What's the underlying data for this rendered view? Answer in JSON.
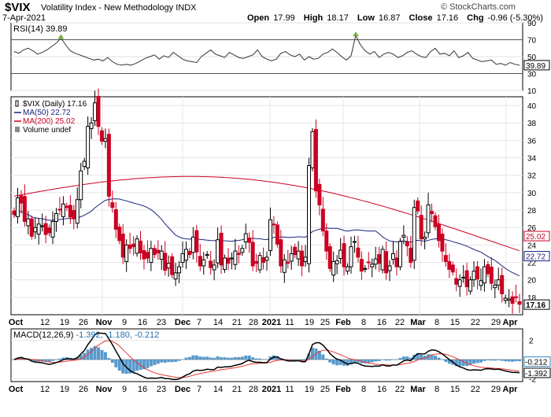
{
  "header": {
    "symbol": "$VIX",
    "name": "Volatility Index - New Methodology",
    "exchange": "INDX",
    "date": "7-Apr-2021",
    "logo": "© StockCharts.com",
    "open_label": "Open",
    "open": "17.99",
    "high_label": "High",
    "high": "18.17",
    "low_label": "Low",
    "low": "16.87",
    "close_label": "Close",
    "close": "17.16",
    "chg_label": "Chg",
    "chg": "-0.96 (-5.30%)"
  },
  "colors": {
    "up": "#000000",
    "down": "#cc0022",
    "ma50": "#1a237e",
    "ma200": "#cc0022",
    "macd_hist": "#3b88c4",
    "rsi_line": "#333333",
    "rsi_marker": "#7cb342"
  },
  "chart_data": [
    {
      "panel": "rsi",
      "type": "line",
      "title": "RSI(14) 39.89",
      "current_label": "39.89",
      "ylim": [
        10,
        90
      ],
      "ticks": [
        "90",
        "70",
        "50",
        "30",
        "10"
      ],
      "ref_lines": [
        70,
        30
      ],
      "values": [
        56,
        54,
        58,
        60,
        57,
        53,
        55,
        58,
        62,
        66,
        72,
        64,
        57,
        54,
        52,
        50,
        48,
        46,
        47,
        45,
        49,
        44,
        41,
        40,
        41,
        40,
        42,
        45,
        48,
        50,
        52,
        47,
        51,
        49,
        55,
        51,
        47,
        45,
        44,
        43,
        50,
        54,
        58,
        53,
        51,
        49,
        55,
        52,
        49,
        48,
        50,
        52,
        58,
        50,
        47,
        45,
        47,
        54,
        56,
        52,
        50,
        53,
        46,
        50,
        47,
        48,
        53,
        55,
        59,
        55,
        50,
        46,
        51,
        75,
        64,
        57,
        53,
        56,
        49,
        53,
        55,
        53,
        49,
        51,
        55,
        57,
        53,
        50,
        49,
        56,
        60,
        53,
        54,
        51,
        57,
        49,
        51,
        55,
        48,
        46,
        44,
        45,
        46,
        41,
        42,
        40,
        43,
        41,
        39.89
      ]
    },
    {
      "panel": "price",
      "type": "candlestick",
      "legend": [
        "$VIX (Daily) 17.16",
        "MA(50) 22.72",
        "MA(200) 25.02",
        "Volume undef"
      ],
      "current_label": "17.16",
      "ma50_label": "22.72",
      "ma200_label": "25.02",
      "ylim": [
        16,
        41
      ],
      "ticks": [
        "40",
        "38",
        "36",
        "34",
        "32",
        "30",
        "28",
        "26",
        "24",
        "22",
        "20",
        "18"
      ],
      "x_labels": [
        "Oct",
        "12",
        "19",
        "26",
        "Nov",
        "9",
        "16",
        "23",
        "Dec",
        "7",
        "14",
        "21",
        "28",
        "2021",
        "11",
        "19",
        "25",
        "Feb",
        "8",
        "16",
        "22",
        "Mar",
        "8",
        "15",
        "22",
        "29",
        "Apr"
      ],
      "close": [
        27.5,
        29.4,
        28.8,
        26.7,
        27.0,
        25.0,
        26.0,
        26.4,
        26.2,
        25.2,
        25.4,
        26.7,
        27.6,
        28.0,
        28.7,
        28.3,
        27.2,
        27.0,
        29.2,
        32.5,
        33.6,
        37.6,
        38.0,
        40.3,
        37.6,
        35.9,
        36.2,
        29.6,
        28.3,
        25.8,
        24.5,
        22.6,
        24.0,
        23.6,
        23.8,
        24.7,
        23.1,
        22.4,
        22.5,
        23.6,
        22.9,
        23.1,
        23.3,
        21.1,
        21.9,
        20.6,
        20.8,
        21.5,
        23.0,
        23.5,
        22.9,
        24.9,
        23.2,
        21.6,
        22.3,
        22.9,
        21.4,
        21.7,
        24.6,
        21.7,
        22.5,
        21.9,
        22.5,
        23.3,
        22.9,
        23.6,
        25.3,
        24.3,
        21.6,
        21.9,
        22.8,
        22.0,
        22.6,
        26.9,
        26.3,
        24.1,
        21.6,
        22.3,
        21.9,
        23.0,
        22.9,
        23.3,
        21.6,
        22.6,
        33.1,
        37.0,
        30.2,
        28.6,
        25.6,
        23.3,
        21.3,
        22.1,
        22.2,
        23.4,
        21.5,
        21.5,
        23.8,
        24.4,
        22.6,
        21.0,
        21.3,
        22.0,
        21.8,
        22.4,
        21.9,
        23.5,
        20.8,
        21.6,
        23.0,
        21.5,
        24.4,
        25.1,
        23.9,
        22.0,
        28.3,
        27.9,
        24.7,
        24.9,
        28.6,
        27.6,
        26.1,
        24.5,
        23.3,
        22.1,
        21.2,
        20.9,
        19.5,
        20.0,
        20.3,
        19.2,
        20.0,
        21.0,
        20.1,
        19.9,
        21.5,
        20.7,
        19.6,
        19.4,
        20.0,
        18.4,
        17.9,
        17.8,
        17.3,
        18.0,
        17.2
      ]
    },
    {
      "panel": "macd",
      "type": "line+bar",
      "title": "MACD(12,26,9)",
      "values_label": "-1.392, -1.180, -0.212",
      "macd_label": "-1.392",
      "hist_label": "-0.212",
      "ylim": [
        -2.3,
        3.2
      ],
      "ticks": [
        "2",
        "0",
        "-2"
      ],
      "x_labels": [
        "Oct",
        "12",
        "19",
        "26",
        "Nov",
        "9",
        "16",
        "23",
        "Dec",
        "7",
        "14",
        "21",
        "28",
        "2021",
        "11",
        "19",
        "25",
        "Feb",
        "8",
        "16",
        "22",
        "Mar",
        "8",
        "15",
        "22",
        "29",
        "Apr"
      ]
    }
  ]
}
